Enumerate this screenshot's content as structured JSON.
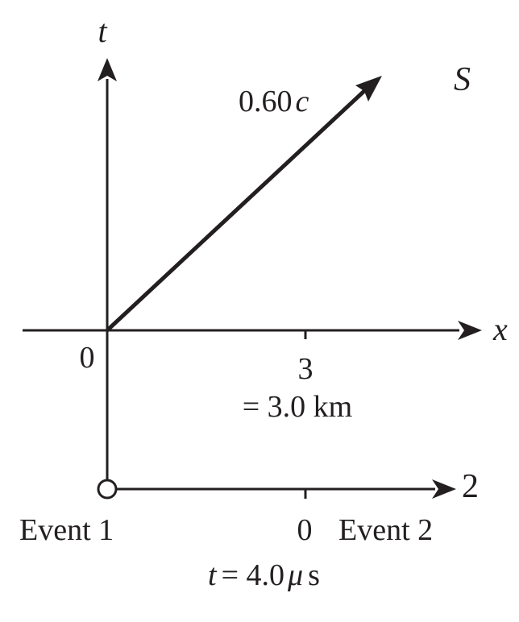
{
  "colors": {
    "ink": "#231f20",
    "background": "#ffffff"
  },
  "axes": {
    "t_label": "t",
    "x_label": "x",
    "origin_label": "0"
  },
  "frame": {
    "label": "S"
  },
  "worldline": {
    "speed_value": "0.60",
    "speed_unit": "c"
  },
  "tick": {
    "value": "3",
    "scale_text": "= 3.0 km"
  },
  "second_axis": {
    "label": "2",
    "tick_value": "0"
  },
  "events": {
    "event1_label": "Event 1",
    "event2_label": "Event 2"
  },
  "time_note": {
    "var": "t",
    "equals_value": "= 4.0",
    "mu": "μ",
    "unit": "s"
  }
}
